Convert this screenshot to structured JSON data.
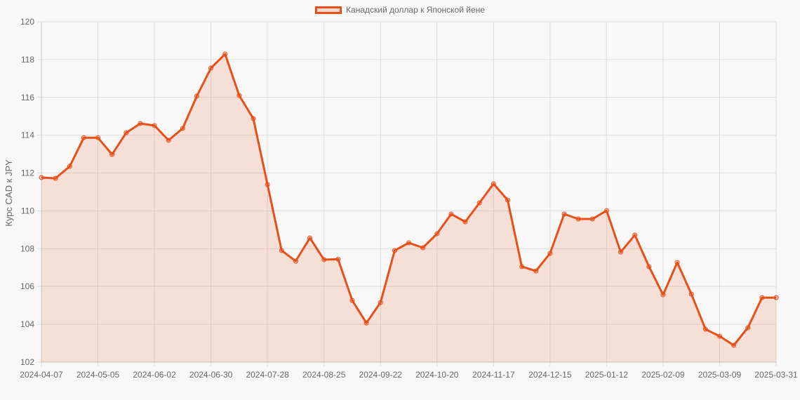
{
  "legend": {
    "label": "Канадский доллар к Японской йене",
    "color": "#e8501a"
  },
  "chart_data": {
    "type": "line",
    "title": "",
    "xlabel": "",
    "ylabel": "Курс CAD к JPY",
    "ylim": [
      102,
      120
    ],
    "yticks": [
      102,
      104,
      106,
      108,
      110,
      112,
      114,
      116,
      118,
      120
    ],
    "grid": true,
    "legend_position": "top",
    "fill": true,
    "line_color": "#e8501a",
    "fill_color": "rgba(232,80,26,0.15)",
    "x_tick_labels": [
      "2024-04-07",
      "2024-05-05",
      "2024-06-02",
      "2024-06-30",
      "2024-07-28",
      "2024-08-25",
      "2024-09-22",
      "2024-10-20",
      "2024-11-17",
      "2024-12-15",
      "2025-01-12",
      "2025-02-09",
      "2025-03-09",
      "2025-03-31"
    ],
    "x": [
      "2024-04-07",
      "2024-04-14",
      "2024-04-21",
      "2024-04-28",
      "2024-05-05",
      "2024-05-12",
      "2024-05-19",
      "2024-05-26",
      "2024-06-02",
      "2024-06-09",
      "2024-06-16",
      "2024-06-23",
      "2024-06-30",
      "2024-07-07",
      "2024-07-14",
      "2024-07-21",
      "2024-07-28",
      "2024-08-04",
      "2024-08-11",
      "2024-08-18",
      "2024-08-25",
      "2024-09-01",
      "2024-09-08",
      "2024-09-15",
      "2024-09-22",
      "2024-09-29",
      "2024-10-06",
      "2024-10-13",
      "2024-10-20",
      "2024-10-27",
      "2024-11-03",
      "2024-11-10",
      "2024-11-17",
      "2024-11-24",
      "2024-12-01",
      "2024-12-08",
      "2024-12-15",
      "2024-12-22",
      "2024-12-29",
      "2025-01-05",
      "2025-01-12",
      "2025-01-19",
      "2025-01-26",
      "2025-02-02",
      "2025-02-09",
      "2025-02-16",
      "2025-02-23",
      "2025-03-02",
      "2025-03-09",
      "2025-03-16",
      "2025-03-23",
      "2025-03-30",
      "2025-03-31"
    ],
    "series": [
      {
        "name": "Канадский доллар к Японской йене",
        "values": [
          111.76,
          111.72,
          112.35,
          113.87,
          113.87,
          112.98,
          114.13,
          114.62,
          114.51,
          113.73,
          114.36,
          116.07,
          117.55,
          118.29,
          116.1,
          114.88,
          111.39,
          107.9,
          107.34,
          108.57,
          107.42,
          107.44,
          105.26,
          104.07,
          105.15,
          107.9,
          108.31,
          108.05,
          108.79,
          109.83,
          109.42,
          110.42,
          111.43,
          110.57,
          107.05,
          106.82,
          107.75,
          109.83,
          109.57,
          109.57,
          110.01,
          107.82,
          108.72,
          107.05,
          105.56,
          107.27,
          105.6,
          103.74,
          103.37,
          102.89,
          103.82,
          105.41,
          105.41
        ]
      }
    ]
  }
}
